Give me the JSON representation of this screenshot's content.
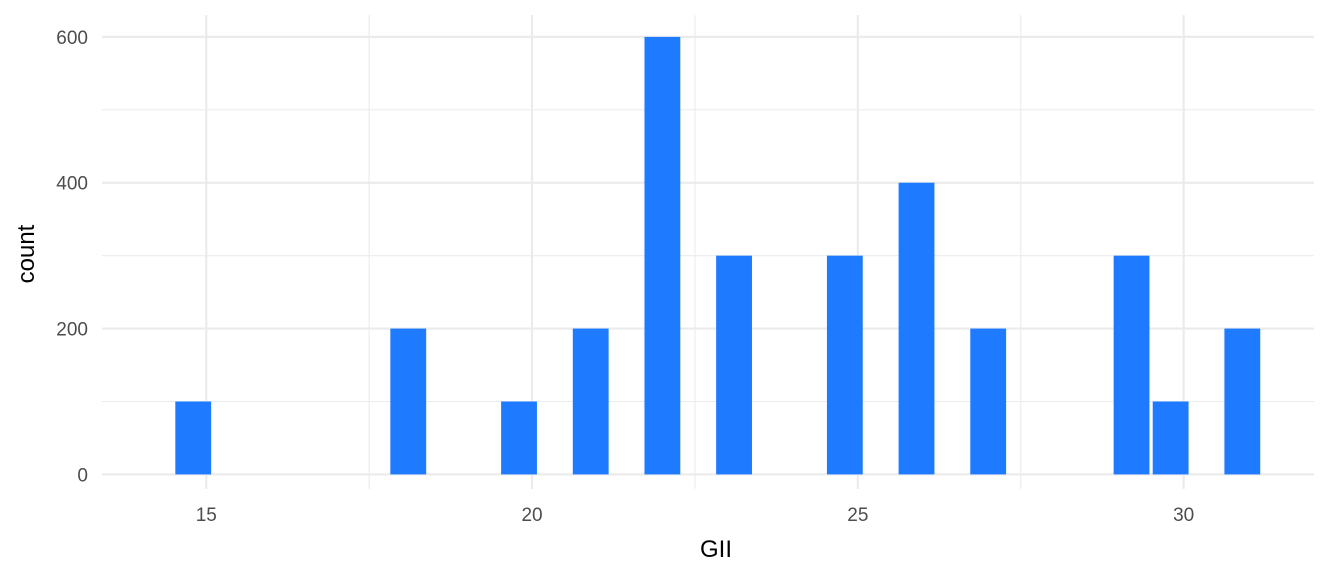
{
  "chart_data": {
    "type": "bar",
    "subtype": "histogram",
    "title": "",
    "xlabel": "GII",
    "ylabel": "count",
    "xlim": [
      13.4,
      32.0
    ],
    "ylim": [
      -20,
      630
    ],
    "x_ticks": [
      15,
      20,
      25,
      30
    ],
    "x_tick_labels": [
      "15",
      "20",
      "25",
      "30"
    ],
    "y_ticks": [
      0,
      200,
      400,
      600
    ],
    "y_tick_labels": [
      "0",
      "200",
      "400",
      "600"
    ],
    "bin_width": 0.55,
    "bins": [
      {
        "x": 14.8,
        "count": 100
      },
      {
        "x": 18.1,
        "count": 200
      },
      {
        "x": 19.8,
        "count": 100
      },
      {
        "x": 20.9,
        "count": 200
      },
      {
        "x": 22.0,
        "count": 600
      },
      {
        "x": 23.1,
        "count": 300
      },
      {
        "x": 24.8,
        "count": 300
      },
      {
        "x": 25.9,
        "count": 400
      },
      {
        "x": 27.0,
        "count": 200
      },
      {
        "x": 29.2,
        "count": 300
      },
      {
        "x": 29.8,
        "count": 100
      },
      {
        "x": 30.9,
        "count": 200
      }
    ],
    "bar_color": "#1E7BFF",
    "grid": true,
    "grid_color": "#EBEBEB",
    "legend": "none"
  }
}
